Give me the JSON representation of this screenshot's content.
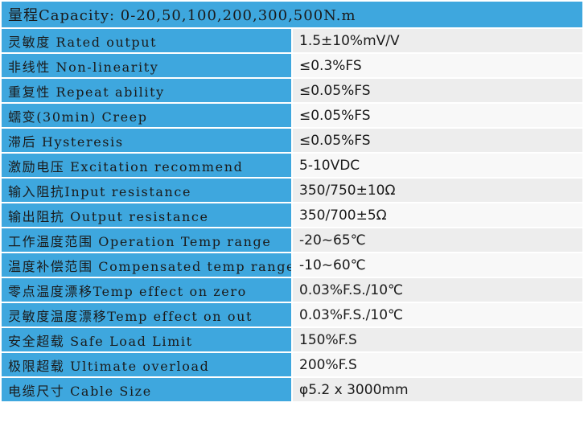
{
  "header": {
    "title": "量程Capacity: 0-20,50,100,200,300,500N.m"
  },
  "table": {
    "rows": [
      [
        "灵敏度 Rated output",
        "1.5±10%mV/V"
      ],
      [
        "非线性 Non-linearity",
        "≤0.3%FS"
      ],
      [
        "重复性 Repeat ability",
        "≤0.05%FS"
      ],
      [
        "蠕变(30min) Creep",
        "≤0.05%FS"
      ],
      [
        "滞后 Hysteresis",
        "≤0.05%FS"
      ],
      [
        "激励电压 Excitation recommend",
        "5-10VDC"
      ],
      [
        "输入阻抗Input resistance",
        "350/750±10Ω"
      ],
      [
        "输出阻抗 Output resistance",
        "350/700±5Ω"
      ],
      [
        "工作温度范围 Operation Temp range",
        "-20~65℃"
      ],
      [
        "温度补偿范围 Compensated temp range",
        "-10~60℃"
      ],
      [
        "零点温度漂移Temp effect on zero",
        "0.03%F.S./10℃"
      ],
      [
        "灵敏度温度漂移Temp effect on out",
        "0.03%F.S./10℃"
      ],
      [
        "安全超载 Safe Load Limit",
        "150%F.S"
      ],
      [
        "极限超载 Ultimate overload",
        "200%F.S"
      ],
      [
        "电缆尺寸 Cable Size",
        "φ5.2 x 3000mm"
      ]
    ]
  }
}
